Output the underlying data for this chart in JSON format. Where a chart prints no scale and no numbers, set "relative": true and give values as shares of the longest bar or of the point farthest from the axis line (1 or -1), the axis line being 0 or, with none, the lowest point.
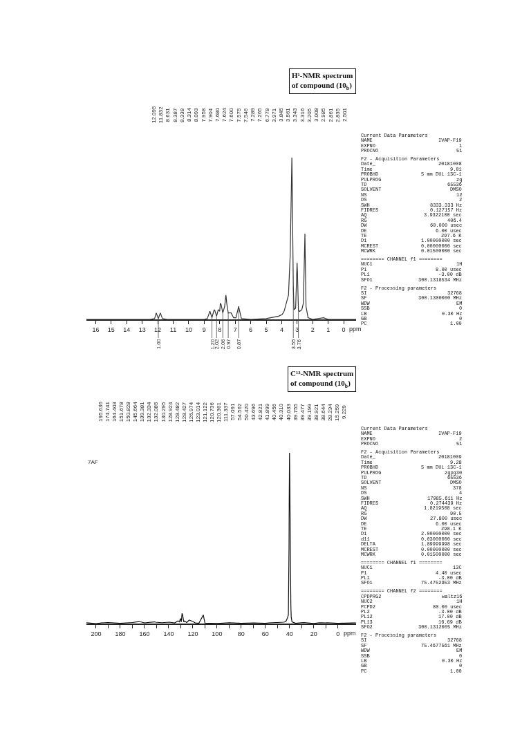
{
  "chart_data": [
    {
      "type": "line",
      "title": "H¹-NMR spectrum\nof compound (10$_{b}$)",
      "xlabel": "ppm",
      "relative": true,
      "color": "#333333",
      "xlim": [
        16.6,
        -0.8
      ],
      "xticks": [
        16,
        15,
        14,
        13,
        12,
        11,
        10,
        9,
        8,
        7,
        6,
        5,
        4,
        3,
        2,
        1,
        0
      ],
      "x": [
        16.6,
        12.5,
        12.2,
        12.095,
        11.96,
        11.832,
        11.7,
        11.4,
        9.0,
        8.8,
        8.631,
        8.5,
        8.387,
        8.338,
        8.314,
        8.2,
        8.093,
        8.0,
        7.958,
        7.904,
        7.8,
        7.68,
        7.624,
        7.6,
        7.575,
        7.546,
        7.45,
        7.289,
        7.265,
        7.1,
        6.95,
        6.778,
        6.6,
        6.0,
        5.0,
        4.2,
        3.971,
        3.845,
        3.561,
        3.45,
        3.343,
        3.316,
        3.25,
        3.205,
        3.1,
        3.008,
        2.985,
        2.92,
        2.861,
        2.835,
        2.7,
        2.6,
        2.501,
        2.43,
        2.3,
        2.0,
        1.3,
        1.0,
        -0.8
      ],
      "values": [
        0,
        0,
        0.005,
        0.04,
        0.005,
        0.04,
        0.005,
        0,
        0,
        0.005,
        0.05,
        0.01,
        0.05,
        0.06,
        0.055,
        0.02,
        0.06,
        0.05,
        0.1,
        0.09,
        0.04,
        0.08,
        0.13,
        0.15,
        0.13,
        0.1,
        0.04,
        0.04,
        0.04,
        0.01,
        0.01,
        0.08,
        0.005,
        0,
        0.005,
        0.02,
        0.03,
        0.05,
        0.15,
        0.4,
        1.0,
        0.8,
        0.2,
        0.06,
        0.07,
        0.35,
        0.3,
        0.06,
        0.05,
        0.05,
        0.06,
        0.1,
        0.53,
        0.08,
        0.01,
        0,
        0.01,
        0,
        0
      ],
      "annotations": [
        "12.095",
        "11.832",
        "8.631",
        "8.387",
        "8.338",
        "8.314",
        "8.093",
        "7.958",
        "7.904",
        "7.680",
        "7.624",
        "7.600",
        "7.575",
        "7.546",
        "7.289",
        "7.265",
        "6.778",
        "3.971",
        "3.845",
        "3.561",
        "3.343",
        "3.316",
        "3.205",
        "3.008",
        "2.985",
        "2.861",
        "2.835",
        "2.501",
        {
          "text": "1.00",
          "x": 11.96,
          "y": 0.005
        },
        {
          "text": "1.20",
          "x": 8.5,
          "y": 0.01
        },
        {
          "text": "2.02",
          "x": 8.2,
          "y": 0.02
        },
        {
          "text": "2.06",
          "x": 7.8,
          "y": 0.04
        },
        {
          "text": "0.97",
          "x": 7.45,
          "y": 0.04
        },
        {
          "text": "0.87",
          "x": 6.778,
          "y": 0.08
        },
        {
          "text": "3.55",
          "x": 3.25,
          "y": 0.2
        },
        {
          "text": "3.76",
          "x": 2.92,
          "y": 0.06
        },
        "Current Data Parameters\nNAME\tIVAP-F19\nEXPNO\t1\nPROCNO\t51",
        "F2 - Acquisition Parameters\nDate_\t20181008\nTime\t9.01\nPROBHD\t5 mm DUL 13C-1\nPULPROG\tzg\nTD\t65536\nSOLVENT\tDMSO\nNS\t12\nDS\t2\nSWH\t8333.333 Hz\nFIDRES\t0.127157 Hz\nAQ\t3.9322100 sec\nRG\t406.4\nDW\t60.000 usec\nDE\t6.00 usec\nTE\t297.6 K\nD1\t1.00000000 sec\nMCREST\t0.00000000 sec\nMCWRK\t0.01500000 sec",
        "======== CHANNEL f1 ========\nNUC1\t1H\nP1\t8.00 usec\nPL1\t-3.00 dB\nSFO1\t300.1318534 MHz",
        "F2 - Processing parameters\nSI\t32768\nSF\t300.1300000 MHz\nWDW\tEM\nSSB\t0\nLB\t0.30 Hz\nGB\t0\nPC\t1.00"
      ]
    },
    {
      "type": "line",
      "title": "C¹³-NMR spectrum\nof compound (10$_{b}$)",
      "xlabel": "ppm",
      "relative": true,
      "color": "#111111",
      "xlim": [
        208,
        -15
      ],
      "xticks": [
        200,
        {
          "value": 190,
          "label": null
        },
        180,
        {
          "value": 170,
          "label": null
        },
        160,
        {
          "value": 150,
          "label": null
        },
        140,
        {
          "value": 130,
          "label": null
        },
        120,
        {
          "value": 110,
          "label": null
        },
        100,
        {
          "value": 90,
          "label": null
        },
        80,
        {
          "value": 70,
          "label": null
        },
        60,
        {
          "value": 50,
          "label": null
        },
        40,
        {
          "value": 30,
          "label": null
        },
        20,
        {
          "value": 10,
          "label": null
        },
        0
      ],
      "x": [
        208,
        200,
        195.636,
        190,
        180,
        174.741,
        170,
        164.403,
        160,
        151.678,
        150.828,
        145.664,
        139.381,
        135,
        132.334,
        132.085,
        131,
        130.295,
        129.5,
        128.924,
        128.482,
        128.427,
        127.5,
        126.974,
        125,
        123.014,
        121.122,
        120.736,
        120.361,
        118,
        115,
        111.337,
        110,
        100,
        90,
        80,
        70,
        60,
        57.091,
        54.562,
        50.42,
        45,
        43.696,
        42.821,
        41.899,
        41,
        40.456,
        40.31,
        40.033,
        39.755,
        39.477,
        39.199,
        38.921,
        38.644,
        38,
        35,
        30,
        28.234,
        20,
        15.259,
        10,
        9.229,
        0,
        -15
      ],
      "values": [
        0.005,
        0,
        0.004,
        0.006,
        0.002,
        0.004,
        0.006,
        0.012,
        0.004,
        0.01,
        0.008,
        0.005,
        0.008,
        0.004,
        0.015,
        0.014,
        0.01,
        0.03,
        0.01,
        0.06,
        0.05,
        0.05,
        0.01,
        0.015,
        0.006,
        0.02,
        0.015,
        0.014,
        0.013,
        0.004,
        0.002,
        0.05,
        0.003,
        0.001,
        0.005,
        0.002,
        0.004,
        0.002,
        0.004,
        0.005,
        0.006,
        0.008,
        0.01,
        0.015,
        0.03,
        0.05,
        0.45,
        0.7,
        1.0,
        0.8,
        0.55,
        0.3,
        0.1,
        0.04,
        0.01,
        0.002,
        0.005,
        0.006,
        0.001,
        0.005,
        0.004,
        0.005,
        0.002,
        0.004
      ],
      "annotations": [
        "195.636",
        "174.741",
        "164.403",
        "151.678",
        "150.828",
        "145.664",
        "139.381",
        "132.334",
        "132.085",
        "130.295",
        "128.924",
        "128.482",
        "128.427",
        "126.974",
        "123.014",
        "121.122",
        "120.736",
        "120.361",
        "111.337",
        "57.091",
        "54.562",
        "50.420",
        "43.696",
        "42.821",
        "41.899",
        "40.456",
        "40.310",
        "40.033",
        "39.755",
        "39.477",
        "39.199",
        "38.921",
        "38.644",
        "28.234",
        "15.259",
        "9.229",
        "Current Data Parameters\nNAME\tIVAP-F19\nEXPNO\t2\nPROCNO\t51",
        "F2 - Acquisition Parameters\nDate_\t20181009\nTime\t9.28\nPROBHD\t5 mm DUL 13C-1\nPULPROG\tzgpg30\nTD\t65536\nSOLVENT\tDMSO\nNS\t378\nDS\t4\nSWH\t17985.611 Hz\nFIDRES\t0.274439 Hz\nAQ\t1.8219508 sec\nRG\t90.5\nDW\t27.800 usec\nDE\t6.00 usec\nTE\t298.1 K\nD1\t2.00000000 sec\nd11\t0.03000000 sec\nDELTA\t1.89999998 sec\nMCREST\t0.00000000 sec\nMCWRK\t0.01500000 sec",
        "======== CHANNEL f1 ========\nNUC1\t13C\nP1\t4.40 usec\nPL1\t-3.00 dB\nSFO1\t75.4752953 MHz",
        "======== CHANNEL f2 ========\nCPDPRG2\twaltz16\nNUC2\t1H\nPCPD2\t80.00 usec\nPL2\t-3.00 dB\nPL12\t17.00 dB\nPL13\t16.69 dB\nSFO2\t300.1312005 MHz",
        "F2 - Processing parameters\nSI\t32768\nSF\t75.4677561 MHz\nWDW\tEM\nSSB\t0\nLB\t0.30 Hz\nGB\t0\nPC\t1.00",
        "7AF"
      ]
    }
  ]
}
